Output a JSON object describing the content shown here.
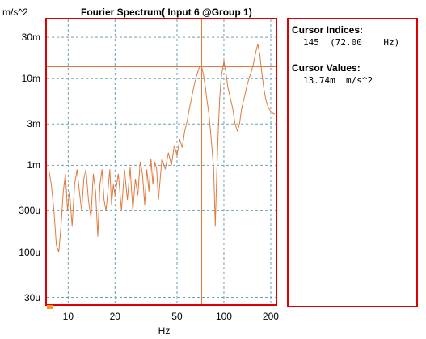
{
  "header": {
    "unit": "m/s^2",
    "title": "Fourier Spectrum( Input 6 @Group 1)"
  },
  "colors": {
    "frame": "#e00000",
    "trace": "#e07a3e",
    "grid": "#6aa0b5",
    "marker": "#f39a1f"
  },
  "cursor_panel": {
    "indices_heading": "Cursor Indices:",
    "indices_value": "145  (72.00    Hz)",
    "values_heading": "Cursor Values:",
    "values_value": "13.74m  m/s^2"
  },
  "chart_data": {
    "type": "line",
    "title": "Fourier Spectrum( Input 6 @Group 1)",
    "xlabel": "Hz",
    "ylabel": "m/s^2",
    "x_scale": "log",
    "y_scale": "log",
    "xlim": [
      7.3,
      215
    ],
    "ylim": [
      2.5e-05,
      0.0483
    ],
    "grid": true,
    "x_ticks": [
      {
        "value": 10,
        "label": "10"
      },
      {
        "value": 20,
        "label": "20"
      },
      {
        "value": 50,
        "label": "50"
      },
      {
        "value": 100,
        "label": "100"
      },
      {
        "value": 200,
        "label": "200"
      }
    ],
    "y_ticks": [
      {
        "value": 3e-05,
        "label": "30u"
      },
      {
        "value": 0.0001,
        "label": "100u"
      },
      {
        "value": 0.0003,
        "label": "300u"
      },
      {
        "value": 0.001,
        "label": "1m"
      },
      {
        "value": 0.003,
        "label": "3m"
      },
      {
        "value": 0.01,
        "label": "10m"
      },
      {
        "value": 0.03,
        "label": "30m"
      }
    ],
    "cursor": {
      "x": 72.0,
      "y": 0.01374
    },
    "series": [
      {
        "x": [
          7.5,
          7.8,
          8.1,
          8.4,
          8.7,
          9.0,
          9.3,
          9.6,
          9.9,
          10.2,
          10.6,
          11.0,
          11.4,
          11.8,
          12.2,
          12.6,
          13.0,
          13.5,
          14.0,
          14.5,
          15.0,
          15.5,
          16.0,
          16.5,
          17.0,
          17.5,
          18.0,
          18.5,
          19.0,
          19.5,
          20.0,
          21.0,
          22.0,
          23.0,
          24.0,
          25.0,
          26.0,
          27.0,
          28.0,
          29.0,
          30.0,
          31.0,
          32.0,
          33.0,
          34.0,
          35.0,
          36.0,
          37.0,
          38.0,
          39.0,
          40.0,
          42.0,
          44.0,
          46.0,
          48.0,
          50.0,
          52.0,
          54.0,
          56.0,
          58.0,
          60.0,
          62.0,
          64.0,
          66.0,
          68.0,
          70.0,
          72.0,
          74.0,
          76.0,
          78.0,
          80.0,
          82.0,
          84.0,
          86.0,
          88.0,
          90.0,
          92.0,
          94.0,
          96.0,
          98.0,
          100.0,
          103.0,
          106.0,
          110.0,
          114.0,
          118.0,
          122.0,
          126.0,
          130.0,
          135.0,
          140.0,
          145.0,
          150.0,
          155.0,
          160.0,
          165.0,
          170.0,
          175.0,
          180.0,
          185.0,
          190.0,
          195.0,
          200.0,
          206.0,
          212.0
        ],
        "y": [
          0.0009,
          0.0006,
          0.0003,
          0.00012,
          0.0001,
          0.0002,
          0.0005,
          0.0008,
          0.0003,
          0.0005,
          0.0002,
          0.0006,
          0.0009,
          0.0005,
          0.0003,
          0.0007,
          0.0009,
          0.0004,
          0.00025,
          0.0008,
          0.0005,
          0.00015,
          0.0006,
          0.0009,
          0.0004,
          0.0003,
          0.0005,
          0.0009,
          0.00035,
          0.0006,
          0.00045,
          0.0008,
          0.0003,
          0.0009,
          0.0004,
          0.00095,
          0.0003,
          0.0007,
          0.00045,
          0.0011,
          0.0008,
          0.00035,
          0.0009,
          0.0005,
          0.0012,
          0.0006,
          0.0011,
          0.0009,
          0.0004,
          0.0007,
          0.0012,
          0.0009,
          0.0014,
          0.001,
          0.0017,
          0.0013,
          0.002,
          0.0016,
          0.0025,
          0.0032,
          0.0045,
          0.006,
          0.008,
          0.01,
          0.012,
          0.014,
          0.0137,
          0.011,
          0.008,
          0.0055,
          0.004,
          0.0025,
          0.0015,
          0.0009,
          0.0002,
          0.0008,
          0.0025,
          0.006,
          0.01,
          0.013,
          0.016,
          0.012,
          0.008,
          0.006,
          0.0045,
          0.003,
          0.0025,
          0.003,
          0.0045,
          0.006,
          0.008,
          0.01,
          0.012,
          0.015,
          0.02,
          0.025,
          0.019,
          0.012,
          0.008,
          0.006,
          0.005,
          0.0045,
          0.0042,
          0.004,
          0.0039
        ]
      }
    ]
  }
}
